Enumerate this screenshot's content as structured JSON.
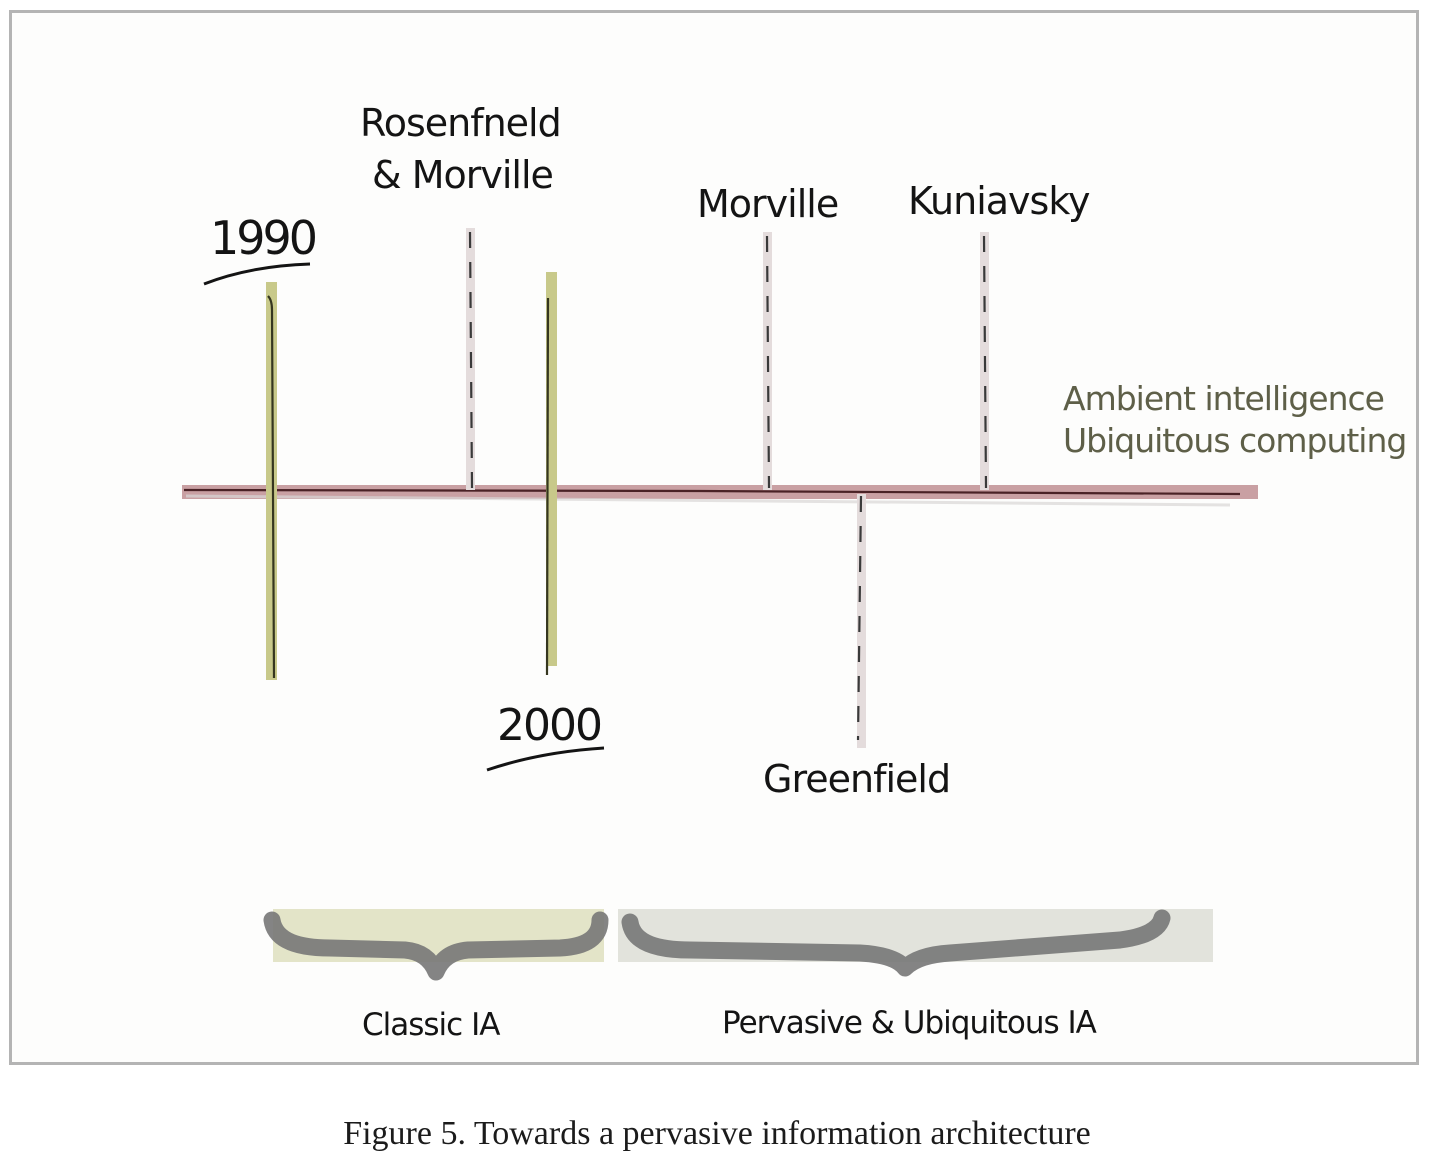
{
  "years": {
    "start": "1990",
    "end": "2000"
  },
  "authors": [
    {
      "line1": "Rosenfneld",
      "line2": "& Morville"
    },
    {
      "line1": "Morville"
    },
    {
      "line1": "Kuniavsky"
    },
    {
      "line1": "Greenfield"
    }
  ],
  "future": {
    "line1": "Ambient intelligence",
    "line2": "Ubiquitous computing"
  },
  "periods": {
    "classic": "Classic IA",
    "pervasive": "Pervasive & Ubiquitous IA"
  },
  "caption": "Figure 5. Towards a pervasive information architecture",
  "colors": {
    "timeline": "#c9a0a3",
    "timeline_ink": "#5a2a2e",
    "year_marker": "#c8c98a",
    "author_marker": "#e4dcdc",
    "classic_band": "#e3e4c8",
    "pervasive_band": "#e2e3dc",
    "brace": "#777777",
    "future_text": "#5e5f48"
  }
}
